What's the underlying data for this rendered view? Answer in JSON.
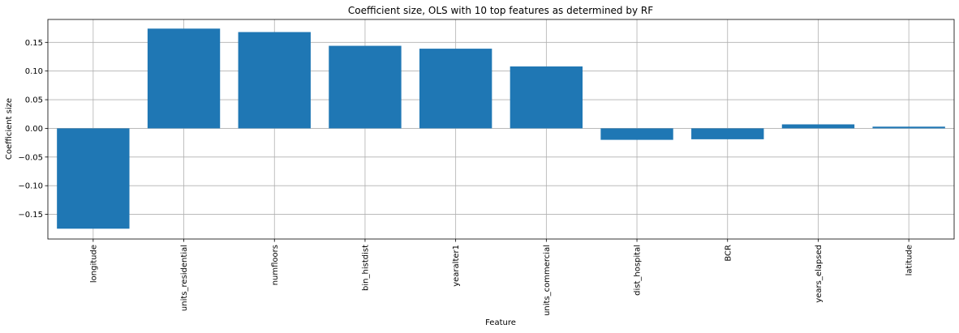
{
  "chart_data": {
    "type": "bar",
    "title": "Coefficient size, OLS with 10 top features as determined by RF",
    "xlabel": "Feature",
    "ylabel": "Coefficient size",
    "categories": [
      "longitude",
      "units_residential",
      "numfloors",
      "bin_histdist",
      "yearalter1",
      "units_commercial",
      "dist_hospital",
      "BCR",
      "years_elapsed",
      "latitude"
    ],
    "values": [
      -0.175,
      0.174,
      0.168,
      0.144,
      0.139,
      0.108,
      -0.02,
      -0.019,
      0.007,
      0.003
    ],
    "ylim": [
      -0.193,
      0.19
    ],
    "yticks": [
      -0.15,
      -0.1,
      -0.05,
      0.0,
      0.05,
      0.1,
      0.15
    ],
    "ytick_labels": [
      "−0.15",
      "−0.10",
      "−0.05",
      "0.00",
      "0.05",
      "0.10",
      "0.15"
    ],
    "grid": true,
    "bar_color": "#1f77b4",
    "grid_color": "#b0b0b0"
  }
}
